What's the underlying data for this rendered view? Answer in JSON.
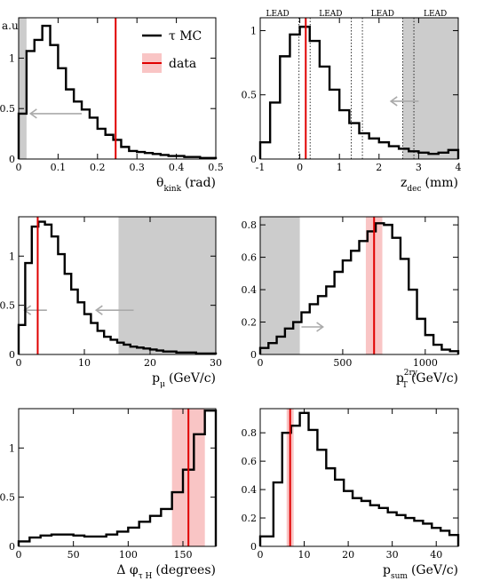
{
  "figure": {
    "ylabel": "a.u.",
    "legend": {
      "mc_label": "τ MC",
      "data_label": "data",
      "mc_color": "#000000",
      "data_color": "#e00000",
      "band_color": "#f9c5c5"
    },
    "shade_color": "#cccccc",
    "arrow_color": "#aaaaaa"
  },
  "chart_data": [
    {
      "id": "theta_kink",
      "type": "histogram",
      "xlabel": "θ",
      "xlabel_sub": "kink",
      "xunit": "(rad)",
      "xlim": [
        0,
        0.5
      ],
      "ylim": [
        0,
        1.4
      ],
      "xticks": [
        0,
        0.1,
        0.2,
        0.3,
        0.4,
        0.5
      ],
      "xticklabels": [
        "0",
        "0.1",
        "0.2",
        "0.3",
        "0.4",
        "0.5"
      ],
      "yticks": [
        0,
        0.5,
        1
      ],
      "yticklabels": [
        "0",
        "0.5",
        "1"
      ],
      "edges": [
        0,
        0.02,
        0.04,
        0.06,
        0.08,
        0.1,
        0.12,
        0.14,
        0.16,
        0.18,
        0.2,
        0.22,
        0.24,
        0.26,
        0.28,
        0.3,
        0.32,
        0.34,
        0.36,
        0.38,
        0.4,
        0.42,
        0.44,
        0.46,
        0.48,
        0.5
      ],
      "values": [
        0.45,
        1.07,
        1.18,
        1.32,
        1.13,
        0.9,
        0.69,
        0.57,
        0.49,
        0.41,
        0.3,
        0.24,
        0.19,
        0.12,
        0.08,
        0.07,
        0.06,
        0.05,
        0.04,
        0.03,
        0.03,
        0.02,
        0.02,
        0.01,
        0.01
      ],
      "data_value": 0.246,
      "band": null,
      "shaded": [
        [
          0,
          0.02
        ]
      ],
      "arrows": [
        {
          "from": 0.16,
          "to": 0.03,
          "y": 0.45
        }
      ],
      "legend": true
    },
    {
      "id": "z_dec",
      "type": "histogram",
      "xlabel": "z",
      "xlabel_sub": "dec",
      "xunit": "(mm)",
      "xlim": [
        -1,
        4
      ],
      "ylim": [
        0,
        1.1
      ],
      "xticks": [
        -1,
        0,
        1,
        2,
        3,
        4
      ],
      "xticklabels": [
        "-1",
        "0",
        "1",
        "2",
        "3",
        "4"
      ],
      "yticks": [
        0,
        0.5,
        1
      ],
      "yticklabels": [
        "0",
        "0.5",
        "1"
      ],
      "edges": [
        -1,
        -0.75,
        -0.5,
        -0.25,
        0,
        0.25,
        0.5,
        0.75,
        1,
        1.25,
        1.5,
        1.75,
        2,
        2.25,
        2.5,
        2.75,
        3,
        3.25,
        3.5,
        3.75,
        4
      ],
      "values": [
        0.13,
        0.44,
        0.8,
        0.97,
        1.03,
        0.92,
        0.72,
        0.54,
        0.38,
        0.28,
        0.2,
        0.16,
        0.13,
        0.1,
        0.08,
        0.06,
        0.05,
        0.04,
        0.05,
        0.07
      ],
      "data_value": 0.15,
      "band": null,
      "shaded": [
        [
          2.6,
          4
        ]
      ],
      "arrows": [
        {
          "from": 3.0,
          "to": 2.3,
          "y": 0.45
        }
      ],
      "lead_boundaries": [
        -0.02,
        0.26,
        1.3,
        1.58,
        2.6,
        2.88
      ],
      "lead_labels": [
        {
          "x": -0.56,
          "text": "LEAD"
        },
        {
          "x": 0.78,
          "text": "LEAD"
        },
        {
          "x": 2.09,
          "text": "LEAD"
        },
        {
          "x": 3.42,
          "text": "LEAD"
        }
      ],
      "legend": false
    },
    {
      "id": "p_mu",
      "type": "histogram",
      "xlabel": "p",
      "xlabel_sub": "μ",
      "xunit": "(GeV/c)",
      "xlim": [
        0,
        30
      ],
      "ylim": [
        0,
        1.4
      ],
      "xticks": [
        0,
        10,
        20,
        30
      ],
      "xticklabels": [
        "0",
        "10",
        "20",
        "30"
      ],
      "yticks": [
        0,
        0.5,
        1
      ],
      "yticklabels": [
        "0",
        "0.5",
        "1"
      ],
      "edges": [
        0,
        1,
        2,
        3,
        4,
        5,
        6,
        7,
        8,
        9,
        10,
        11,
        12,
        13,
        14,
        15,
        16,
        17,
        18,
        19,
        20,
        21,
        22,
        23,
        24,
        25,
        26,
        27,
        28,
        29,
        30
      ],
      "values": [
        0.3,
        0.93,
        1.3,
        1.35,
        1.32,
        1.2,
        1.02,
        0.82,
        0.66,
        0.53,
        0.41,
        0.32,
        0.24,
        0.18,
        0.15,
        0.12,
        0.1,
        0.08,
        0.07,
        0.06,
        0.05,
        0.04,
        0.03,
        0.03,
        0.02,
        0.02,
        0.02,
        0.01,
        0.01,
        0.01
      ],
      "data_value": 2.9,
      "band": null,
      "shaded": [
        [
          15.2,
          30
        ]
      ],
      "arrows": [
        {
          "from": 4.3,
          "to": 0.9,
          "y": 0.45
        },
        {
          "from": 17.5,
          "to": 11.8,
          "y": 0.45
        }
      ],
      "legend": false
    },
    {
      "id": "pt_2ry",
      "type": "histogram",
      "xlabel": "p",
      "xlabel_sub": "T",
      "xlabel_sup": "2ry",
      "xunit": "(GeV/c)",
      "xlim": [
        0,
        1200
      ],
      "ylim": [
        0,
        0.85
      ],
      "xticks": [
        0,
        500,
        1000
      ],
      "xticklabels": [
        "0",
        "500",
        "1000"
      ],
      "yticks": [
        0,
        0.2,
        0.4,
        0.6,
        0.8
      ],
      "yticklabels": [
        "0",
        "0.2",
        "0.4",
        "0.6",
        "0.8"
      ],
      "edges": [
        0,
        50,
        100,
        150,
        200,
        250,
        300,
        350,
        400,
        450,
        500,
        550,
        600,
        650,
        700,
        750,
        800,
        850,
        900,
        950,
        1000,
        1050,
        1100,
        1150,
        1200
      ],
      "values": [
        0.04,
        0.07,
        0.11,
        0.16,
        0.2,
        0.26,
        0.31,
        0.36,
        0.42,
        0.51,
        0.58,
        0.64,
        0.7,
        0.76,
        0.81,
        0.8,
        0.72,
        0.59,
        0.4,
        0.22,
        0.12,
        0.06,
        0.03,
        0.02
      ],
      "data_value": 690,
      "band": [
        640,
        740
      ],
      "shaded": [
        [
          0,
          240
        ]
      ],
      "arrows": [
        {
          "from": 250,
          "to": 380,
          "y": 0.17
        }
      ],
      "legend": false
    },
    {
      "id": "delta_phi",
      "type": "histogram",
      "xlabel": "Δ φ",
      "xlabel_sub": "τ H",
      "xunit": "(degrees)",
      "xlim": [
        0,
        180
      ],
      "ylim": [
        0,
        1.4
      ],
      "xticks": [
        0,
        50,
        100,
        150
      ],
      "xticklabels": [
        "0",
        "50",
        "100",
        "150"
      ],
      "yticks": [
        0,
        0.5,
        1
      ],
      "yticklabels": [
        "0",
        "0.5",
        "1"
      ],
      "edges": [
        0,
        10,
        20,
        30,
        40,
        50,
        60,
        70,
        80,
        90,
        100,
        110,
        120,
        130,
        140,
        150,
        160,
        170,
        180
      ],
      "values": [
        0.05,
        0.09,
        0.11,
        0.12,
        0.12,
        0.11,
        0.1,
        0.1,
        0.12,
        0.15,
        0.19,
        0.25,
        0.31,
        0.38,
        0.55,
        0.78,
        1.14,
        1.38
      ],
      "data_value": 155,
      "band": [
        140,
        170
      ],
      "shaded": [],
      "arrows": [],
      "legend": false
    },
    {
      "id": "p_sum",
      "type": "histogram",
      "xlabel": "p",
      "xlabel_sub": "sum",
      "xunit": "(GeV/c)",
      "xlim": [
        0,
        45
      ],
      "ylim": [
        0,
        0.97
      ],
      "xticks": [
        0,
        10,
        20,
        30,
        40
      ],
      "xticklabels": [
        "0",
        "10",
        "20",
        "30",
        "40"
      ],
      "yticks": [
        0,
        0.2,
        0.4,
        0.6,
        0.8
      ],
      "yticklabels": [
        "0",
        "0.2",
        "0.4",
        "0.6",
        "0.8"
      ],
      "edges": [
        0,
        3,
        5,
        7,
        9,
        11,
        13,
        15,
        17,
        19,
        21,
        23,
        25,
        27,
        29,
        31,
        33,
        35,
        37,
        39,
        41,
        43,
        45
      ],
      "values": [
        0.07,
        0.45,
        0.8,
        0.85,
        0.94,
        0.82,
        0.68,
        0.55,
        0.47,
        0.39,
        0.34,
        0.32,
        0.29,
        0.27,
        0.24,
        0.22,
        0.2,
        0.18,
        0.16,
        0.13,
        0.11,
        0.08
      ],
      "data_value": 6.8,
      "band": [
        6.0,
        7.6
      ],
      "shaded": [],
      "arrows": [],
      "legend": false
    }
  ]
}
